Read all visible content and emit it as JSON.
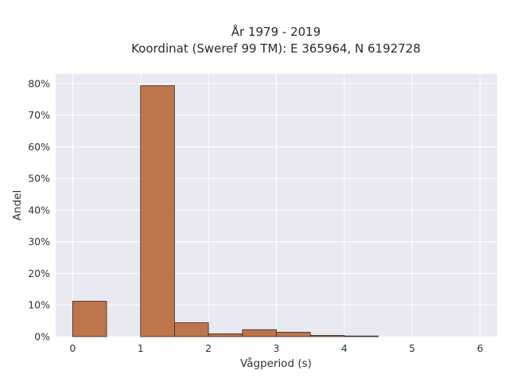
{
  "chart_data": {
    "type": "bar",
    "title": "År 1979 - 2019",
    "subtitle": "Koordinat (Sweref 99 TM): E 365964, N 6192728",
    "xlabel": "Vågperiod (s)",
    "ylabel": "Andel",
    "xlim": [
      -0.25,
      6.25
    ],
    "ylim": [
      0,
      0.83
    ],
    "x_ticks": [
      0,
      1,
      2,
      3,
      4,
      5,
      6
    ],
    "y_ticks": [
      0,
      0.1,
      0.2,
      0.3,
      0.4,
      0.5,
      0.6,
      0.7,
      0.8
    ],
    "y_tick_labels": [
      "0%",
      "10%",
      "20%",
      "30%",
      "40%",
      "50%",
      "60%",
      "70%",
      "80%"
    ],
    "bins": [
      {
        "start": 0.0,
        "end": 0.5,
        "value": 0.112
      },
      {
        "start": 1.0,
        "end": 1.5,
        "value": 0.793
      },
      {
        "start": 1.5,
        "end": 2.0,
        "value": 0.044
      },
      {
        "start": 2.0,
        "end": 2.5,
        "value": 0.009
      },
      {
        "start": 2.5,
        "end": 3.0,
        "value": 0.022
      },
      {
        "start": 3.0,
        "end": 3.5,
        "value": 0.014
      },
      {
        "start": 3.5,
        "end": 4.0,
        "value": 0.004
      },
      {
        "start": 4.0,
        "end": 4.5,
        "value": 0.002
      }
    ],
    "grid": true,
    "legend": "none",
    "colors": {
      "bar": "#b5602f",
      "plot_background": "#e9e9f1",
      "grid": "#ffffff"
    }
  }
}
